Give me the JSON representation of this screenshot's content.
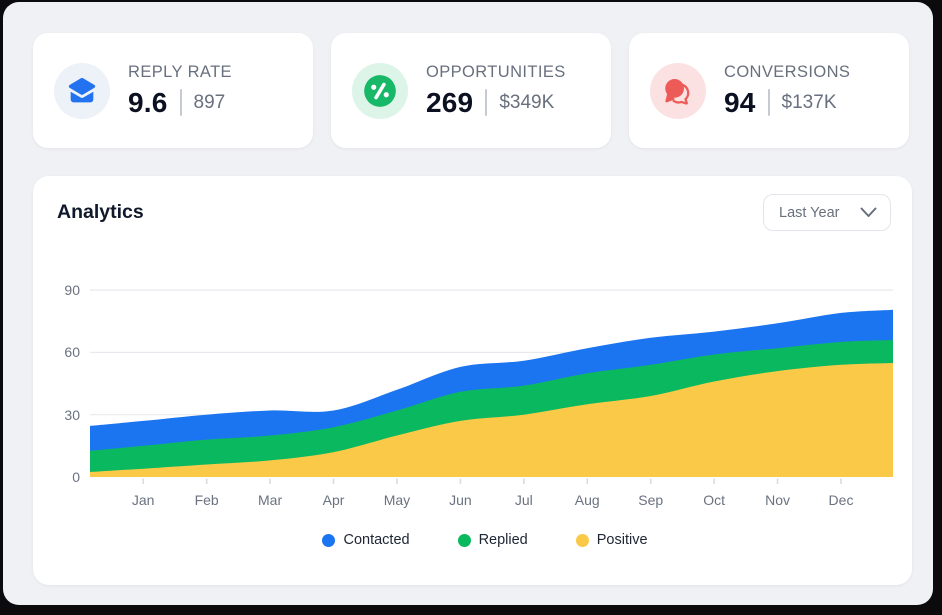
{
  "stats": [
    {
      "label": "REPLY RATE",
      "value": "9.6",
      "secondary": "897",
      "icon": "mail-icon",
      "icon_color": "#2373F0",
      "icon_bg": "#EDF1F8"
    },
    {
      "label": "OPPORTUNITIES",
      "value": "269",
      "secondary": "$349K",
      "icon": "percent-icon",
      "icon_color": "#17B868",
      "icon_bg": "#DDF4E8"
    },
    {
      "label": "CONVERSIONS",
      "value": "94",
      "secondary": "$137K",
      "icon": "chat-icon",
      "icon_color": "#ED5B58",
      "icon_bg": "#FBE1E1"
    }
  ],
  "analytics": {
    "title": "Analytics",
    "range_selector": {
      "value": "Last Year"
    }
  },
  "chart_data": {
    "type": "area",
    "stacked": true,
    "title": "Analytics",
    "categories": [
      "Jan",
      "Feb",
      "Mar",
      "Apr",
      "May",
      "Jun",
      "Jul",
      "Aug",
      "Sep",
      "Oct",
      "Nov",
      "Dec"
    ],
    "series": [
      {
        "name": "Contacted",
        "color": "#1B74F0",
        "values": [
          12,
          12,
          12,
          8,
          10,
          12,
          12,
          12,
          13,
          11,
          12,
          14
        ]
      },
      {
        "name": "Replied",
        "color": "#0AB95F",
        "values": [
          11,
          12,
          12,
          12,
          12,
          14,
          14,
          15,
          15,
          13,
          11,
          11
        ]
      },
      {
        "name": "Positive",
        "color": "#FBC948",
        "values": [
          4,
          6,
          8,
          12,
          20,
          27,
          30,
          35,
          39,
          46,
          51,
          54
        ]
      }
    ],
    "stacked_totals": [
      27,
      30,
      32,
      32,
      42,
      53,
      56,
      62,
      67,
      70,
      74,
      79
    ],
    "y_ticks": [
      0,
      30,
      60,
      90
    ],
    "ylim": [
      0,
      95
    ],
    "grid": "horizontal",
    "grid_color": "#E7E9EE",
    "tick_color": "#D8DBE1",
    "legend_position": "bottom"
  }
}
